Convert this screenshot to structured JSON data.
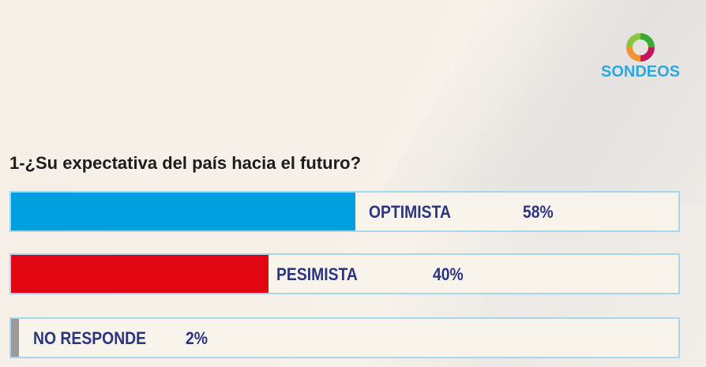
{
  "logo": {
    "text": "SONDEOS"
  },
  "chart_data": {
    "type": "bar",
    "title": "1-¿Su expectativa del país hacia el futuro?",
    "categories": [
      "OPTIMISTA",
      "PESIMISTA",
      "NO RESPONDE"
    ],
    "values": [
      58,
      40,
      2
    ],
    "labels": [
      "58%",
      "40%",
      "2%"
    ],
    "colors": [
      "#009fe0",
      "#e20613",
      "#9a9a9a"
    ]
  }
}
